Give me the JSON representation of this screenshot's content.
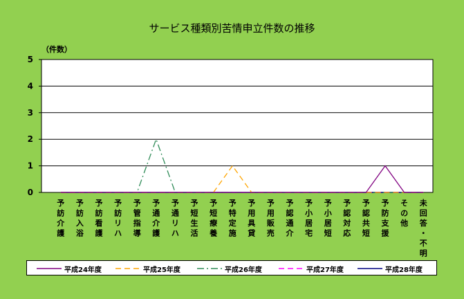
{
  "chart_data": {
    "type": "line",
    "title": "サービス種類別苦情申立件数の推移",
    "ylabel": "（件数）",
    "xlabel": "",
    "ylim": [
      0,
      5
    ],
    "yticks": [
      "0",
      "1",
      "2",
      "3",
      "4",
      "5"
    ],
    "grid": true,
    "legend_position": "bottom",
    "categories": [
      "予訪介護",
      "予訪入浴",
      "予訪看護",
      "予訪リハ",
      "予管指導",
      "予通介護",
      "予通リハ",
      "予短生活",
      "予短療養",
      "予特定施",
      "予用具貸",
      "予用販売",
      "予認通介",
      "予小居宅",
      "予小居短",
      "予認対応",
      "予認共短",
      "予防支援",
      "その他",
      "未回答・不明"
    ],
    "series": [
      {
        "name": "平成24年度",
        "color": "#800080",
        "dash": "solid",
        "values": [
          0,
          0,
          0,
          0,
          0,
          0,
          0,
          0,
          0,
          0,
          0,
          0,
          0,
          0,
          0,
          0,
          0,
          1,
          0,
          0
        ]
      },
      {
        "name": "平成25年度",
        "color": "#ffa500",
        "dash": "dash",
        "values": [
          0,
          0,
          0,
          0,
          0,
          0,
          0,
          0,
          0,
          1,
          0,
          0,
          0,
          0,
          0,
          0,
          0,
          0,
          0,
          0
        ]
      },
      {
        "name": "平成26年度",
        "color": "#2e8b57",
        "dash": "dashdot",
        "values": [
          0,
          0,
          0,
          0,
          0,
          2,
          0,
          0,
          0,
          0,
          0,
          0,
          0,
          0,
          0,
          0,
          0,
          0,
          0,
          0
        ]
      },
      {
        "name": "平成27年度",
        "color": "#ff00ff",
        "dash": "dash",
        "values": [
          0,
          0,
          0,
          0,
          0,
          0,
          0,
          0,
          0,
          0,
          0,
          0,
          0,
          0,
          0,
          0,
          0,
          0,
          0,
          0
        ]
      },
      {
        "name": "平成28年度",
        "color": "#000080",
        "dash": "solid",
        "values": [
          0,
          0,
          0,
          0,
          0,
          0,
          0,
          0,
          0,
          0,
          0,
          0,
          0,
          0,
          0,
          0,
          0,
          0,
          0,
          0
        ]
      }
    ]
  }
}
